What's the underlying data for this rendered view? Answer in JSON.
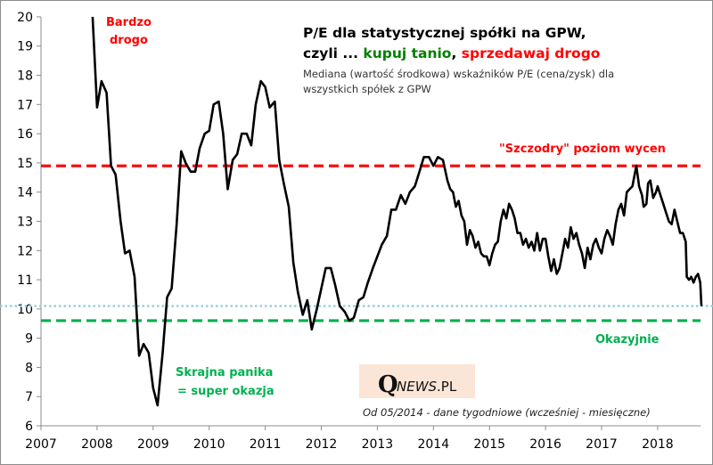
{
  "chart_data": {
    "type": "line",
    "title_line1": "P/E dla statystycznej spółki na GPW,",
    "title_line2_prefix": "czyli ... ",
    "title_line2_buy": "kupuj tanio",
    "title_line2_sep": ", ",
    "title_line2_sell": "sprzedawaj drogo",
    "subtitle_line1": "Mediana (wartość środkowa) wskaźników P/E (cena/zysk) dla",
    "subtitle_line2": "wszystkich spółek z GPW",
    "xlabel": "",
    "ylabel": "",
    "xlim": [
      2007,
      2018.75
    ],
    "ylim": [
      6,
      20
    ],
    "x_ticks": [
      "2007",
      "2008",
      "2009",
      "2010",
      "2011",
      "2012",
      "2013",
      "2014",
      "2015",
      "2016",
      "2017",
      "2018"
    ],
    "y_ticks": [
      "6",
      "7",
      "8",
      "9",
      "10",
      "11",
      "12",
      "13",
      "14",
      "15",
      "16",
      "17",
      "18",
      "19",
      "20"
    ],
    "grid": false,
    "reference_lines": [
      {
        "name": "expensive",
        "value": 14.9,
        "label": "\"Szczodry\" poziom wycen",
        "color": "#ff0000",
        "style": "dashed"
      },
      {
        "name": "cheap",
        "value": 9.6,
        "label": "Okazyjnie",
        "color": "#00b050",
        "style": "dashed"
      },
      {
        "name": "current",
        "value": 10.1,
        "label": "",
        "color": "#92cddc",
        "style": "dotted"
      }
    ],
    "annotations": {
      "very_expensive": [
        "Bardzo",
        "drogo"
      ],
      "panic": [
        "Skrajna panika",
        "= super okazja"
      ],
      "note": "Od 05/2014 - dane tygodniowe (wcześniej - miesięczne)"
    },
    "series": [
      {
        "name": "Mediana P/E GPW",
        "color": "#000000",
        "points": [
          [
            2007.92,
            20.0
          ],
          [
            2008.0,
            16.9
          ],
          [
            2008.08,
            17.8
          ],
          [
            2008.17,
            17.4
          ],
          [
            2008.25,
            14.9
          ],
          [
            2008.33,
            14.6
          ],
          [
            2008.42,
            13.0
          ],
          [
            2008.5,
            11.9
          ],
          [
            2008.58,
            12.0
          ],
          [
            2008.67,
            11.1
          ],
          [
            2008.75,
            8.4
          ],
          [
            2008.83,
            8.8
          ],
          [
            2008.92,
            8.5
          ],
          [
            2009.0,
            7.3
          ],
          [
            2009.08,
            6.7
          ],
          [
            2009.17,
            8.5
          ],
          [
            2009.25,
            10.4
          ],
          [
            2009.33,
            10.7
          ],
          [
            2009.42,
            12.9
          ],
          [
            2009.5,
            15.4
          ],
          [
            2009.58,
            15.0
          ],
          [
            2009.67,
            14.7
          ],
          [
            2009.75,
            14.7
          ],
          [
            2009.83,
            15.5
          ],
          [
            2009.92,
            16.0
          ],
          [
            2010.0,
            16.1
          ],
          [
            2010.08,
            17.0
          ],
          [
            2010.17,
            17.1
          ],
          [
            2010.25,
            16.0
          ],
          [
            2010.33,
            14.1
          ],
          [
            2010.42,
            15.1
          ],
          [
            2010.5,
            15.3
          ],
          [
            2010.58,
            16.0
          ],
          [
            2010.67,
            16.0
          ],
          [
            2010.75,
            15.6
          ],
          [
            2010.83,
            17.0
          ],
          [
            2010.92,
            17.8
          ],
          [
            2011.0,
            17.6
          ],
          [
            2011.08,
            16.9
          ],
          [
            2011.17,
            17.1
          ],
          [
            2011.25,
            15.1
          ],
          [
            2011.33,
            14.3
          ],
          [
            2011.42,
            13.5
          ],
          [
            2011.5,
            11.6
          ],
          [
            2011.58,
            10.6
          ],
          [
            2011.67,
            9.8
          ],
          [
            2011.75,
            10.3
          ],
          [
            2011.83,
            9.3
          ],
          [
            2011.92,
            10.0
          ],
          [
            2012.0,
            10.7
          ],
          [
            2012.08,
            11.4
          ],
          [
            2012.17,
            11.4
          ],
          [
            2012.25,
            10.8
          ],
          [
            2012.33,
            10.1
          ],
          [
            2012.42,
            9.9
          ],
          [
            2012.5,
            9.6
          ],
          [
            2012.58,
            9.7
          ],
          [
            2012.67,
            10.3
          ],
          [
            2012.75,
            10.4
          ],
          [
            2012.83,
            10.9
          ],
          [
            2012.92,
            11.4
          ],
          [
            2013.0,
            11.8
          ],
          [
            2013.08,
            12.2
          ],
          [
            2013.17,
            12.5
          ],
          [
            2013.25,
            13.4
          ],
          [
            2013.33,
            13.4
          ],
          [
            2013.42,
            13.9
          ],
          [
            2013.5,
            13.6
          ],
          [
            2013.58,
            14.0
          ],
          [
            2013.67,
            14.2
          ],
          [
            2013.75,
            14.7
          ],
          [
            2013.83,
            15.2
          ],
          [
            2013.92,
            15.2
          ],
          [
            2014.0,
            14.9
          ],
          [
            2014.08,
            15.2
          ],
          [
            2014.17,
            15.1
          ],
          [
            2014.25,
            14.4
          ],
          [
            2014.3,
            14.1
          ],
          [
            2014.35,
            14.0
          ],
          [
            2014.4,
            13.5
          ],
          [
            2014.45,
            13.7
          ],
          [
            2014.5,
            13.2
          ],
          [
            2014.55,
            13.0
          ],
          [
            2014.6,
            12.2
          ],
          [
            2014.65,
            12.7
          ],
          [
            2014.7,
            12.5
          ],
          [
            2014.75,
            12.1
          ],
          [
            2014.8,
            12.3
          ],
          [
            2014.85,
            11.9
          ],
          [
            2014.9,
            11.8
          ],
          [
            2014.95,
            11.8
          ],
          [
            2015.0,
            11.5
          ],
          [
            2015.05,
            11.9
          ],
          [
            2015.1,
            12.2
          ],
          [
            2015.15,
            12.3
          ],
          [
            2015.2,
            13.0
          ],
          [
            2015.25,
            13.4
          ],
          [
            2015.3,
            13.1
          ],
          [
            2015.35,
            13.6
          ],
          [
            2015.4,
            13.4
          ],
          [
            2015.45,
            13.1
          ],
          [
            2015.5,
            12.6
          ],
          [
            2015.55,
            12.6
          ],
          [
            2015.6,
            12.2
          ],
          [
            2015.65,
            12.4
          ],
          [
            2015.7,
            12.1
          ],
          [
            2015.75,
            12.3
          ],
          [
            2015.8,
            12.0
          ],
          [
            2015.85,
            12.6
          ],
          [
            2015.9,
            12.0
          ],
          [
            2015.95,
            12.4
          ],
          [
            2016.0,
            12.4
          ],
          [
            2016.05,
            11.8
          ],
          [
            2016.1,
            11.3
          ],
          [
            2016.15,
            11.7
          ],
          [
            2016.2,
            11.2
          ],
          [
            2016.25,
            11.4
          ],
          [
            2016.3,
            11.9
          ],
          [
            2016.35,
            12.4
          ],
          [
            2016.4,
            12.1
          ],
          [
            2016.45,
            12.8
          ],
          [
            2016.5,
            12.4
          ],
          [
            2016.55,
            12.6
          ],
          [
            2016.6,
            12.2
          ],
          [
            2016.65,
            11.9
          ],
          [
            2016.7,
            11.4
          ],
          [
            2016.75,
            12.1
          ],
          [
            2016.8,
            11.7
          ],
          [
            2016.85,
            12.2
          ],
          [
            2016.9,
            12.4
          ],
          [
            2016.95,
            12.1
          ],
          [
            2017.0,
            11.9
          ],
          [
            2017.05,
            12.4
          ],
          [
            2017.1,
            12.7
          ],
          [
            2017.15,
            12.5
          ],
          [
            2017.2,
            12.2
          ],
          [
            2017.25,
            12.9
          ],
          [
            2017.3,
            13.4
          ],
          [
            2017.35,
            13.6
          ],
          [
            2017.4,
            13.2
          ],
          [
            2017.45,
            14.0
          ],
          [
            2017.5,
            14.1
          ],
          [
            2017.55,
            14.2
          ],
          [
            2017.6,
            14.7
          ],
          [
            2017.62,
            14.9
          ],
          [
            2017.67,
            14.2
          ],
          [
            2017.72,
            13.9
          ],
          [
            2017.75,
            13.5
          ],
          [
            2017.8,
            13.6
          ],
          [
            2017.83,
            14.3
          ],
          [
            2017.87,
            14.4
          ],
          [
            2017.92,
            13.8
          ],
          [
            2017.97,
            14.0
          ],
          [
            2018.0,
            14.2
          ],
          [
            2018.05,
            13.9
          ],
          [
            2018.1,
            13.6
          ],
          [
            2018.15,
            13.3
          ],
          [
            2018.2,
            13.0
          ],
          [
            2018.25,
            12.9
          ],
          [
            2018.3,
            13.4
          ],
          [
            2018.35,
            13.0
          ],
          [
            2018.4,
            12.6
          ],
          [
            2018.45,
            12.6
          ],
          [
            2018.5,
            12.3
          ],
          [
            2018.52,
            11.1
          ],
          [
            2018.56,
            11.0
          ],
          [
            2018.6,
            11.1
          ],
          [
            2018.64,
            10.9
          ],
          [
            2018.68,
            11.1
          ],
          [
            2018.72,
            11.2
          ],
          [
            2018.76,
            10.9
          ],
          [
            2018.78,
            10.1
          ]
        ]
      }
    ]
  },
  "logo": {
    "q": "Q",
    "rest_italic": "NEWS",
    "domain": ".PL",
    "bg_color": "#fbe5d6"
  },
  "colors": {
    "buy": "#008000",
    "sell": "#ff0000",
    "panic": "#00b050"
  }
}
